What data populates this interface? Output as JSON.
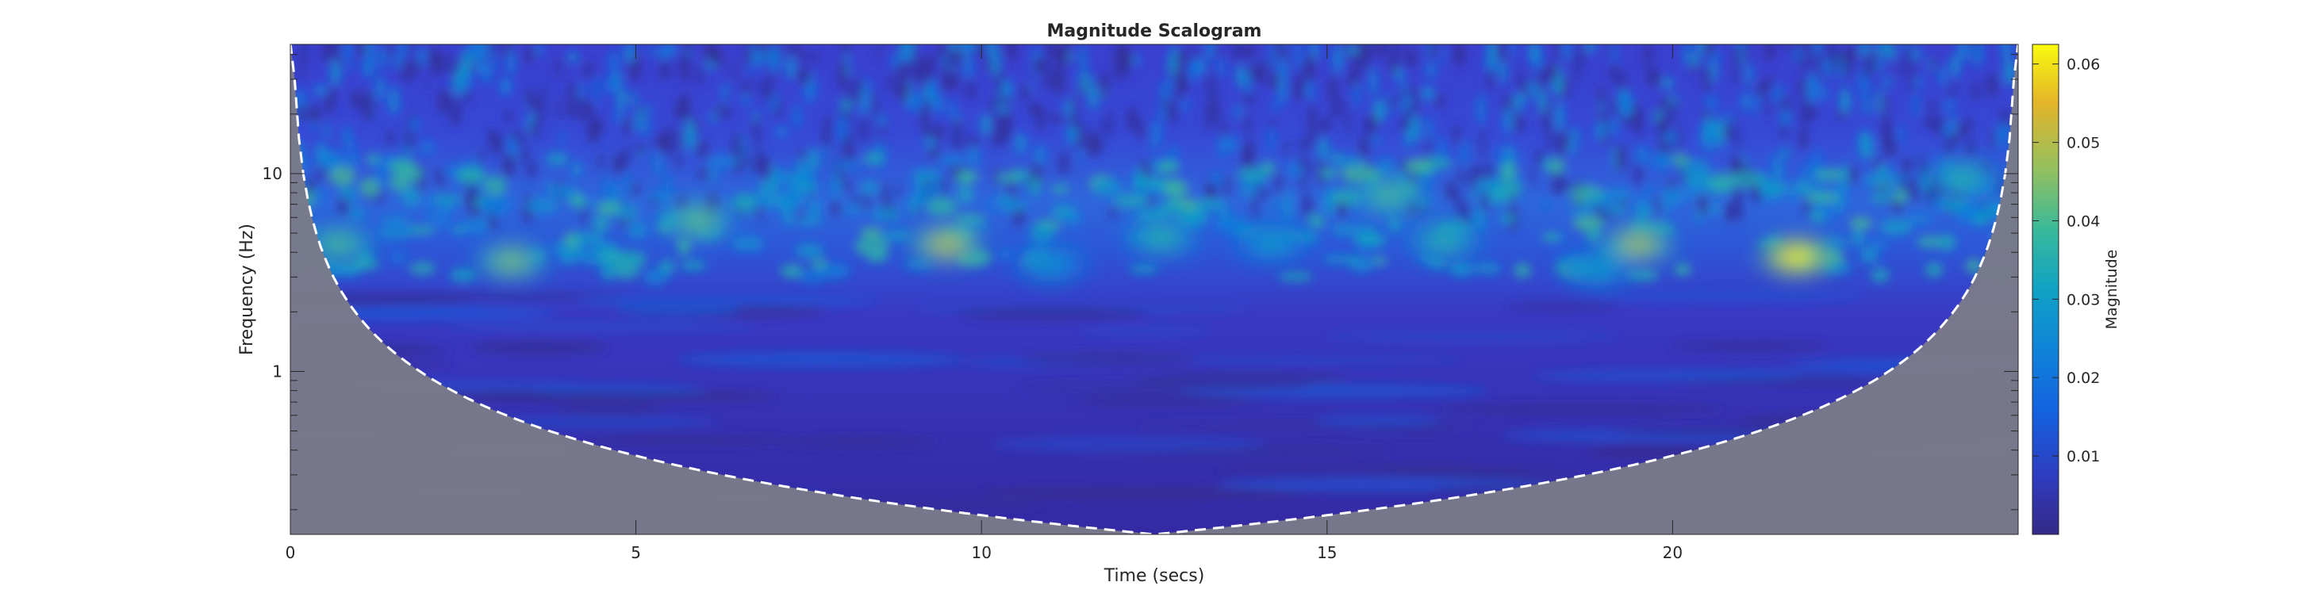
{
  "chart_data": {
    "type": "heatmap",
    "title": "Magnitude Scalogram",
    "xlabel": "Time (secs)",
    "ylabel": "Frequency (Hz)",
    "xlim": [
      0,
      25
    ],
    "ylim": [
      0.15,
      45
    ],
    "yscale": "log",
    "x_ticks": [
      0,
      5,
      10,
      15,
      20
    ],
    "x_tick_labels": [
      "0",
      "5",
      "10",
      "15",
      "20"
    ],
    "y_ticks": [
      1,
      10
    ],
    "y_tick_labels": [
      "1",
      "10"
    ],
    "colorbar": {
      "label": "Magnitude",
      "range": [
        0,
        0.0625
      ],
      "ticks": [
        0.01,
        0.02,
        0.03,
        0.04,
        0.05,
        0.06
      ],
      "tick_labels": [
        "0.01",
        "0.02",
        "0.03",
        "0.04",
        "0.05",
        "0.06"
      ],
      "colormap": "parula"
    },
    "cone_of_influence": {
      "style": "dashed-white",
      "outside_shading": "#7a7a8a",
      "min_frequency_at_center": 0.15
    },
    "hotspots": [
      {
        "time": 21.8,
        "frequency": 3.8,
        "magnitude": 0.061
      },
      {
        "time": 9.5,
        "frequency": 4.4,
        "magnitude": 0.05
      },
      {
        "time": 19.5,
        "frequency": 4.4,
        "magnitude": 0.048
      },
      {
        "time": 3.2,
        "frequency": 3.6,
        "magnitude": 0.044
      },
      {
        "time": 5.9,
        "frequency": 5.8,
        "magnitude": 0.042
      },
      {
        "time": 0.7,
        "frequency": 4.4,
        "magnitude": 0.04
      },
      {
        "time": 15.9,
        "frequency": 7.8,
        "magnitude": 0.04
      },
      {
        "time": 12.6,
        "frequency": 4.8,
        "magnitude": 0.036
      },
      {
        "time": 16.7,
        "frequency": 4.6,
        "magnitude": 0.036
      },
      {
        "time": 24.2,
        "frequency": 9.5,
        "magnitude": 0.036
      },
      {
        "time": 18.9,
        "frequency": 3.3,
        "magnitude": 0.03
      },
      {
        "time": 11.0,
        "frequency": 3.5,
        "magnitude": 0.028
      },
      {
        "time": 14.2,
        "frequency": 4.5,
        "magnitude": 0.03
      }
    ]
  }
}
